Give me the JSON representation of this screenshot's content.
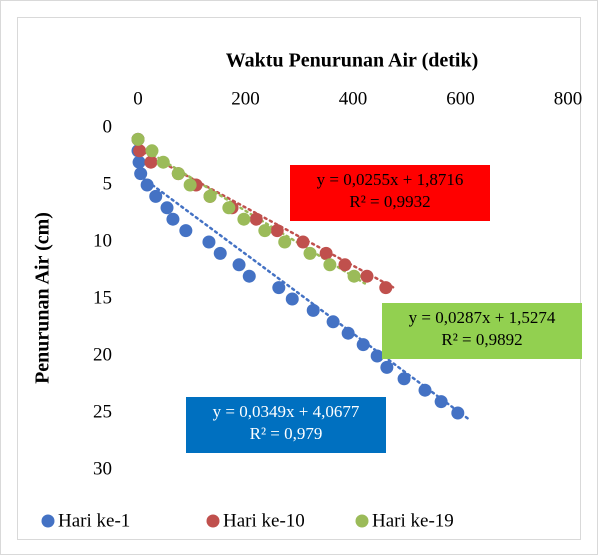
{
  "chart_data": {
    "type": "scatter",
    "title": "Waktu Penurunan Air (detik)",
    "y_label": "Penurunan Air (cm)",
    "xlim": [
      0,
      800
    ],
    "xticks": [
      0,
      200,
      400,
      600,
      800
    ],
    "ylim": [
      0,
      30
    ],
    "yticks": [
      0,
      5,
      10,
      15,
      20,
      25,
      30
    ],
    "y_inverted": true,
    "x_axis_position": "top",
    "legend": "bottom",
    "series": [
      {
        "name": "Hari ke-1",
        "color": "#4472c4",
        "x": [
          0,
          0,
          2,
          5,
          17,
          33,
          54,
          65,
          89,
          132,
          153,
          188,
          207,
          262,
          287,
          326,
          363,
          391,
          419,
          445,
          463,
          495,
          534,
          564,
          595
        ],
        "values": [
          1,
          2,
          3,
          4,
          5,
          6,
          7,
          8,
          9,
          10,
          11,
          12,
          13,
          14,
          15,
          16,
          17,
          18,
          19,
          20,
          21,
          22,
          23,
          24,
          25
        ],
        "trendline": {
          "slope": 0.0349,
          "intercept": 4.0677
        },
        "trendline_label": [
          "y = 0,0349x + 4,0677",
          "R² = 0,979"
        ],
        "label_box_color": "#0070c0",
        "label_text_color": "#ffffff"
      },
      {
        "name": "Hari ke-10",
        "color": "#c0504d",
        "x": [
          0,
          3,
          24,
          75,
          108,
          134,
          175,
          220,
          259,
          307,
          350,
          385,
          426,
          461
        ],
        "values": [
          1,
          2,
          3,
          4,
          5,
          6,
          7,
          8,
          9,
          10,
          11,
          12,
          13,
          14
        ],
        "trendline": {
          "slope": 0.0255,
          "intercept": 1.8716
        },
        "trendline_label": [
          "y = 0,0255x + 1,8716",
          "R² = 0,9932"
        ],
        "label_box_color": "#ff0000",
        "label_text_color": "#000000"
      },
      {
        "name": "Hari ke-19",
        "color": "#9bbb59",
        "x": [
          0,
          26,
          47,
          75,
          97,
          134,
          169,
          197,
          236,
          273,
          320,
          357,
          402
        ],
        "values": [
          1,
          2,
          3,
          4,
          5,
          6,
          7,
          8,
          9,
          10,
          11,
          12,
          13
        ],
        "trendline": {
          "slope": 0.0287,
          "intercept": 1.5274
        },
        "trendline_label": [
          "y = 0,0287x + 1,5274",
          "R² = 0,9892"
        ],
        "label_box_color": "#92d050",
        "label_text_color": "#000000"
      }
    ]
  }
}
